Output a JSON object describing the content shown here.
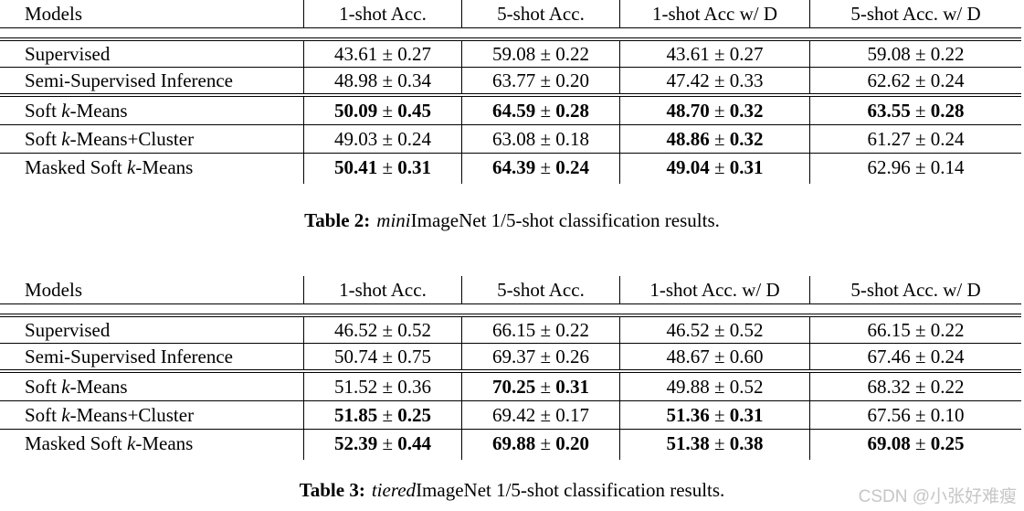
{
  "page": {
    "background": "#ffffff",
    "text_color": "#000000",
    "rule_color": "#000000",
    "watermark_color": "#c6c6c6"
  },
  "tables": [
    {
      "title": "miniImageNet 1/5-shot classification results",
      "columns": [
        "Models",
        "1-shot Acc.",
        "5-shot Acc.",
        "1-shot Acc w/ D",
        "5-shot Acc. w/ D"
      ],
      "groups": [
        {
          "rows": [
            {
              "model": {
                "pre": "Supervised",
                "k": "",
                "post": ""
              },
              "cells": [
                {
                  "text": "43.61 ± 0.27",
                  "bold": false
                },
                {
                  "text": "59.08 ± 0.22",
                  "bold": false
                },
                {
                  "text": "43.61 ± 0.27",
                  "bold": false
                },
                {
                  "text": "59.08 ± 0.22",
                  "bold": false
                }
              ]
            },
            {
              "model": {
                "pre": "Semi-Supervised Inference",
                "k": "",
                "post": ""
              },
              "cells": [
                {
                  "text": "48.98 ± 0.34",
                  "bold": false
                },
                {
                  "text": "63.77 ± 0.20",
                  "bold": false
                },
                {
                  "text": "47.42 ± 0.33",
                  "bold": false
                },
                {
                  "text": "62.62 ± 0.24",
                  "bold": false
                }
              ]
            }
          ]
        },
        {
          "rows": [
            {
              "model": {
                "pre": "Soft ",
                "k": "k",
                "post": "-Means"
              },
              "cells": [
                {
                  "text": "50.09 ± 0.45",
                  "bold": true
                },
                {
                  "text": "64.59 ± 0.28",
                  "bold": true
                },
                {
                  "text": "48.70 ± 0.32",
                  "bold": true
                },
                {
                  "text": "63.55 ± 0.28",
                  "bold": true
                }
              ]
            },
            {
              "model": {
                "pre": "Soft ",
                "k": "k",
                "post": "-Means+Cluster"
              },
              "cells": [
                {
                  "text": "49.03 ± 0.24",
                  "bold": false
                },
                {
                  "text": "63.08 ± 0.18",
                  "bold": false
                },
                {
                  "text": "48.86 ± 0.32",
                  "bold": true
                },
                {
                  "text": "61.27 ± 0.24",
                  "bold": false
                }
              ]
            },
            {
              "model": {
                "pre": "Masked Soft ",
                "k": "k",
                "post": "-Means"
              },
              "cells": [
                {
                  "text": "50.41 ± 0.31",
                  "bold": true
                },
                {
                  "text": "64.39 ± 0.24",
                  "bold": true
                },
                {
                  "text": "49.04 ± 0.31",
                  "bold": true
                },
                {
                  "text": "62.96 ± 0.14",
                  "bold": false
                }
              ]
            }
          ]
        }
      ],
      "caption": {
        "label": "Table 2:",
        "italic": "mini",
        "rest": "ImageNet 1/5-shot classification results."
      }
    },
    {
      "title": "tieredImageNet 1/5-shot classification results",
      "columns": [
        "Models",
        "1-shot Acc.",
        "5-shot Acc.",
        "1-shot Acc. w/ D",
        "5-shot Acc. w/ D"
      ],
      "groups": [
        {
          "rows": [
            {
              "model": {
                "pre": "Supervised",
                "k": "",
                "post": ""
              },
              "cells": [
                {
                  "text": "46.52 ± 0.52",
                  "bold": false
                },
                {
                  "text": "66.15 ± 0.22",
                  "bold": false
                },
                {
                  "text": "46.52 ± 0.52",
                  "bold": false
                },
                {
                  "text": "66.15 ± 0.22",
                  "bold": false
                }
              ]
            },
            {
              "model": {
                "pre": "Semi-Supervised Inference",
                "k": "",
                "post": ""
              },
              "cells": [
                {
                  "text": "50.74 ± 0.75",
                  "bold": false
                },
                {
                  "text": "69.37 ± 0.26",
                  "bold": false
                },
                {
                  "text": "48.67 ± 0.60",
                  "bold": false
                },
                {
                  "text": "67.46 ± 0.24",
                  "bold": false
                }
              ]
            }
          ]
        },
        {
          "rows": [
            {
              "model": {
                "pre": "Soft ",
                "k": "k",
                "post": "-Means"
              },
              "cells": [
                {
                  "text": "51.52 ± 0.36",
                  "bold": false
                },
                {
                  "text": "70.25 ± 0.31",
                  "bold": true
                },
                {
                  "text": "49.88 ± 0.52",
                  "bold": false
                },
                {
                  "text": "68.32 ± 0.22",
                  "bold": false
                }
              ]
            },
            {
              "model": {
                "pre": "Soft ",
                "k": "k",
                "post": "-Means+Cluster"
              },
              "cells": [
                {
                  "text": "51.85 ± 0.25",
                  "bold": true
                },
                {
                  "text": "69.42 ± 0.17",
                  "bold": false
                },
                {
                  "text": "51.36 ± 0.31",
                  "bold": true
                },
                {
                  "text": "67.56 ± 0.10",
                  "bold": false
                }
              ]
            },
            {
              "model": {
                "pre": "Masked Soft ",
                "k": "k",
                "post": "-Means"
              },
              "cells": [
                {
                  "text": "52.39 ± 0.44",
                  "bold": true
                },
                {
                  "text": "69.88 ± 0.20",
                  "bold": true
                },
                {
                  "text": "51.38 ± 0.38",
                  "bold": true
                },
                {
                  "text": "69.08 ± 0.25",
                  "bold": true
                }
              ]
            }
          ]
        }
      ],
      "caption": {
        "label": "Table 3:",
        "italic": "tiered",
        "rest": "ImageNet 1/5-shot classification results."
      }
    }
  ],
  "watermark": {
    "text": "CSDN @小张好难瘦"
  }
}
